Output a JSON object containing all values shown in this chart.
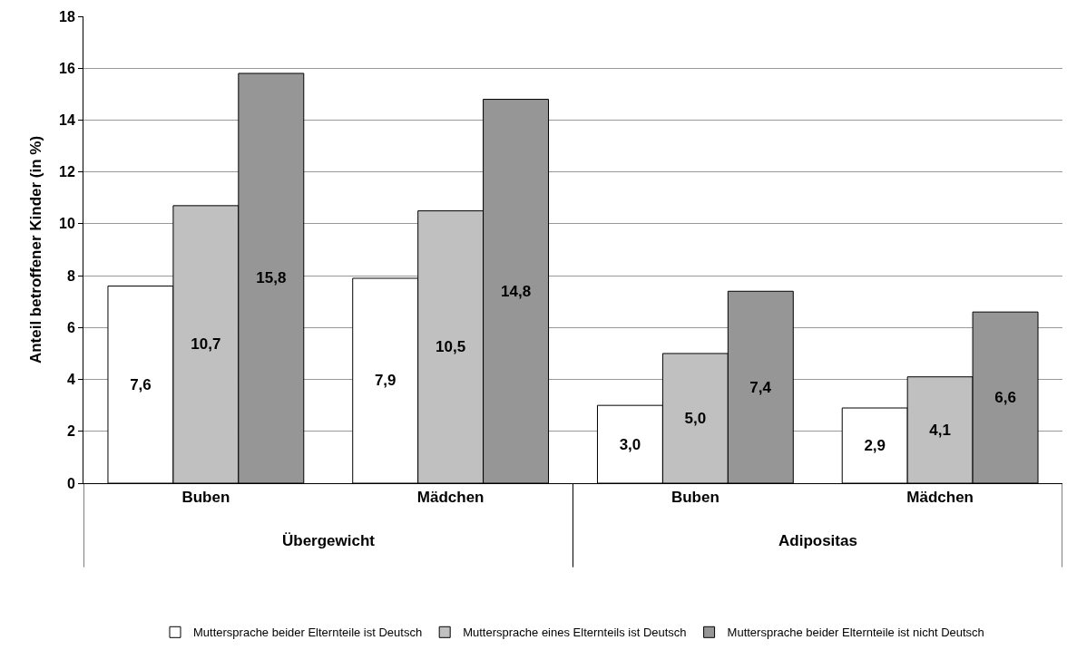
{
  "chart_data": {
    "type": "bar",
    "ylabel": "Anteil betroffener Kinder (in %)",
    "categories": [
      "Buben",
      "Mädchen",
      "Buben",
      "Mädchen"
    ],
    "annotations": [
      "Übergewicht",
      "Adipositas"
    ],
    "series": [
      {
        "name": "Muttersprache beider Elternteile ist Deutsch",
        "color": "#ffffff",
        "values": [
          7.6,
          7.9,
          3.0,
          2.9
        ],
        "value_labels": [
          "7,6",
          "7,9",
          "3,0",
          "2,9"
        ]
      },
      {
        "name": "Muttersprache eines Elternteils ist Deutsch",
        "color": "#c0c0c0",
        "values": [
          10.7,
          10.5,
          5.0,
          4.1
        ],
        "value_labels": [
          "10,7",
          "10,5",
          "5,0",
          "4,1"
        ]
      },
      {
        "name": "Muttersprache beider Elternteile ist nicht Deutsch",
        "color": "#969696",
        "values": [
          15.8,
          14.8,
          7.4,
          6.6
        ],
        "value_labels": [
          "15,8",
          "14,8",
          "7,4",
          "6,6"
        ]
      }
    ],
    "ylim": [
      0,
      18
    ],
    "yticks": [
      0,
      2,
      4,
      6,
      8,
      10,
      12,
      14,
      16,
      18
    ],
    "grid": "y",
    "legend": "bottom"
  }
}
